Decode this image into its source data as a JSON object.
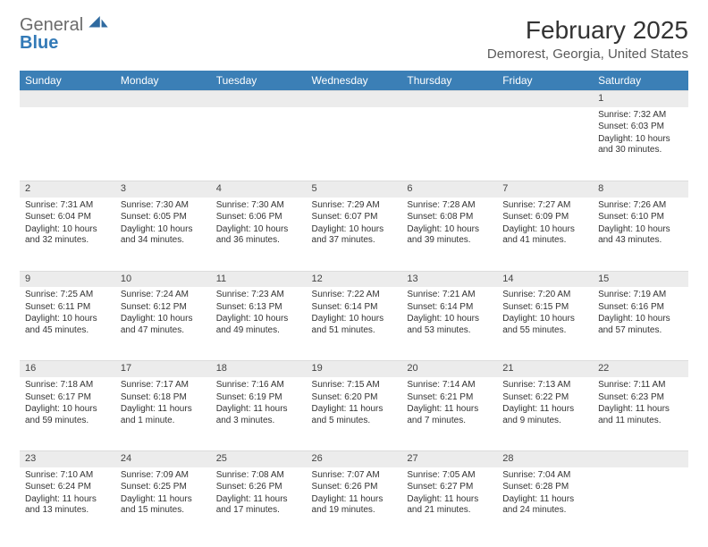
{
  "logo": {
    "word1": "General",
    "word2": "Blue"
  },
  "title": "February 2025",
  "location": "Demorest, Georgia, United States",
  "colors": {
    "header_bg": "#3b7fb6",
    "header_text": "#ffffff",
    "daynum_bg": "#ececec",
    "body_text": "#333333",
    "logo_gray": "#6b6b6b",
    "logo_blue": "#337ab7"
  },
  "weekdays": [
    "Sunday",
    "Monday",
    "Tuesday",
    "Wednesday",
    "Thursday",
    "Friday",
    "Saturday"
  ],
  "weeks": [
    [
      null,
      null,
      null,
      null,
      null,
      null,
      {
        "n": "1",
        "sunrise": "Sunrise: 7:32 AM",
        "sunset": "Sunset: 6:03 PM",
        "daylight": "Daylight: 10 hours and 30 minutes."
      }
    ],
    [
      {
        "n": "2",
        "sunrise": "Sunrise: 7:31 AM",
        "sunset": "Sunset: 6:04 PM",
        "daylight": "Daylight: 10 hours and 32 minutes."
      },
      {
        "n": "3",
        "sunrise": "Sunrise: 7:30 AM",
        "sunset": "Sunset: 6:05 PM",
        "daylight": "Daylight: 10 hours and 34 minutes."
      },
      {
        "n": "4",
        "sunrise": "Sunrise: 7:30 AM",
        "sunset": "Sunset: 6:06 PM",
        "daylight": "Daylight: 10 hours and 36 minutes."
      },
      {
        "n": "5",
        "sunrise": "Sunrise: 7:29 AM",
        "sunset": "Sunset: 6:07 PM",
        "daylight": "Daylight: 10 hours and 37 minutes."
      },
      {
        "n": "6",
        "sunrise": "Sunrise: 7:28 AM",
        "sunset": "Sunset: 6:08 PM",
        "daylight": "Daylight: 10 hours and 39 minutes."
      },
      {
        "n": "7",
        "sunrise": "Sunrise: 7:27 AM",
        "sunset": "Sunset: 6:09 PM",
        "daylight": "Daylight: 10 hours and 41 minutes."
      },
      {
        "n": "8",
        "sunrise": "Sunrise: 7:26 AM",
        "sunset": "Sunset: 6:10 PM",
        "daylight": "Daylight: 10 hours and 43 minutes."
      }
    ],
    [
      {
        "n": "9",
        "sunrise": "Sunrise: 7:25 AM",
        "sunset": "Sunset: 6:11 PM",
        "daylight": "Daylight: 10 hours and 45 minutes."
      },
      {
        "n": "10",
        "sunrise": "Sunrise: 7:24 AM",
        "sunset": "Sunset: 6:12 PM",
        "daylight": "Daylight: 10 hours and 47 minutes."
      },
      {
        "n": "11",
        "sunrise": "Sunrise: 7:23 AM",
        "sunset": "Sunset: 6:13 PM",
        "daylight": "Daylight: 10 hours and 49 minutes."
      },
      {
        "n": "12",
        "sunrise": "Sunrise: 7:22 AM",
        "sunset": "Sunset: 6:14 PM",
        "daylight": "Daylight: 10 hours and 51 minutes."
      },
      {
        "n": "13",
        "sunrise": "Sunrise: 7:21 AM",
        "sunset": "Sunset: 6:14 PM",
        "daylight": "Daylight: 10 hours and 53 minutes."
      },
      {
        "n": "14",
        "sunrise": "Sunrise: 7:20 AM",
        "sunset": "Sunset: 6:15 PM",
        "daylight": "Daylight: 10 hours and 55 minutes."
      },
      {
        "n": "15",
        "sunrise": "Sunrise: 7:19 AM",
        "sunset": "Sunset: 6:16 PM",
        "daylight": "Daylight: 10 hours and 57 minutes."
      }
    ],
    [
      {
        "n": "16",
        "sunrise": "Sunrise: 7:18 AM",
        "sunset": "Sunset: 6:17 PM",
        "daylight": "Daylight: 10 hours and 59 minutes."
      },
      {
        "n": "17",
        "sunrise": "Sunrise: 7:17 AM",
        "sunset": "Sunset: 6:18 PM",
        "daylight": "Daylight: 11 hours and 1 minute."
      },
      {
        "n": "18",
        "sunrise": "Sunrise: 7:16 AM",
        "sunset": "Sunset: 6:19 PM",
        "daylight": "Daylight: 11 hours and 3 minutes."
      },
      {
        "n": "19",
        "sunrise": "Sunrise: 7:15 AM",
        "sunset": "Sunset: 6:20 PM",
        "daylight": "Daylight: 11 hours and 5 minutes."
      },
      {
        "n": "20",
        "sunrise": "Sunrise: 7:14 AM",
        "sunset": "Sunset: 6:21 PM",
        "daylight": "Daylight: 11 hours and 7 minutes."
      },
      {
        "n": "21",
        "sunrise": "Sunrise: 7:13 AM",
        "sunset": "Sunset: 6:22 PM",
        "daylight": "Daylight: 11 hours and 9 minutes."
      },
      {
        "n": "22",
        "sunrise": "Sunrise: 7:11 AM",
        "sunset": "Sunset: 6:23 PM",
        "daylight": "Daylight: 11 hours and 11 minutes."
      }
    ],
    [
      {
        "n": "23",
        "sunrise": "Sunrise: 7:10 AM",
        "sunset": "Sunset: 6:24 PM",
        "daylight": "Daylight: 11 hours and 13 minutes."
      },
      {
        "n": "24",
        "sunrise": "Sunrise: 7:09 AM",
        "sunset": "Sunset: 6:25 PM",
        "daylight": "Daylight: 11 hours and 15 minutes."
      },
      {
        "n": "25",
        "sunrise": "Sunrise: 7:08 AM",
        "sunset": "Sunset: 6:26 PM",
        "daylight": "Daylight: 11 hours and 17 minutes."
      },
      {
        "n": "26",
        "sunrise": "Sunrise: 7:07 AM",
        "sunset": "Sunset: 6:26 PM",
        "daylight": "Daylight: 11 hours and 19 minutes."
      },
      {
        "n": "27",
        "sunrise": "Sunrise: 7:05 AM",
        "sunset": "Sunset: 6:27 PM",
        "daylight": "Daylight: 11 hours and 21 minutes."
      },
      {
        "n": "28",
        "sunrise": "Sunrise: 7:04 AM",
        "sunset": "Sunset: 6:28 PM",
        "daylight": "Daylight: 11 hours and 24 minutes."
      },
      null
    ]
  ]
}
